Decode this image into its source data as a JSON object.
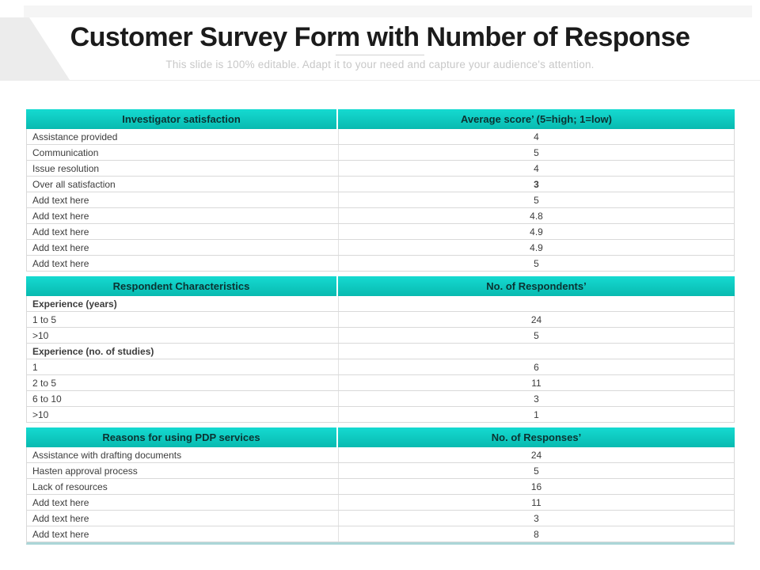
{
  "slide": {
    "title": "Customer Survey Form with Number of Response",
    "subtitle": "This slide is 100% editable. Adapt it to your need and capture your audience's attention."
  },
  "colors": {
    "header_teal_top": "#15dad1",
    "header_teal_bottom": "#08bab0",
    "header_text": "#0b3332",
    "body_text": "#3c3c3c",
    "row_border": "#d9d9d9",
    "table_bottom_border": "#abd6d8",
    "subtitle_gray": "#c8c8c8"
  },
  "table": {
    "sections": [
      {
        "header": {
          "col1": "Investigator satisfaction",
          "col2": "Average score’ (5=high; 1=low)"
        },
        "rows": [
          {
            "label": "Assistance provided",
            "value": "4"
          },
          {
            "label": "Communication",
            "value": "5"
          },
          {
            "label": "Issue resolution",
            "value": "4"
          },
          {
            "label": "Over all satisfaction",
            "value": "3",
            "value_bold": true
          },
          {
            "label": "Add text here",
            "value": "5"
          },
          {
            "label": "Add text here",
            "value": "4.8"
          },
          {
            "label": "Add text here",
            "value": "4.9"
          },
          {
            "label": "Add text here",
            "value": "4.9"
          },
          {
            "label": "Add text here",
            "value": "5"
          }
        ]
      },
      {
        "header": {
          "col1": "Respondent Characteristics",
          "col2": "No. of Respondents’"
        },
        "rows": [
          {
            "label": "Experience (years)",
            "value": "",
            "label_bold": true
          },
          {
            "label": "1 to 5",
            "value": "24"
          },
          {
            "label": ">10",
            "value": "5"
          },
          {
            "label": "Experience (no. of studies)",
            "value": "",
            "label_bold": true
          },
          {
            "label": "1",
            "value": "6"
          },
          {
            "label": "2 to 5",
            "value": "11"
          },
          {
            "label": "6 to 10",
            "value": "3"
          },
          {
            "label": ">10",
            "value": "1"
          }
        ]
      },
      {
        "header": {
          "col1": "Reasons for using PDP services",
          "col2": "No. of Responses’"
        },
        "rows": [
          {
            "label": "Assistance with drafting documents",
            "value": "24"
          },
          {
            "label": "Hasten approval process",
            "value": "5"
          },
          {
            "label": "Lack of resources",
            "value": "16"
          },
          {
            "label": "Add text here",
            "value": "11"
          },
          {
            "label": "Add text here",
            "value": "3"
          },
          {
            "label": "Add text here",
            "value": "8"
          }
        ]
      }
    ]
  }
}
